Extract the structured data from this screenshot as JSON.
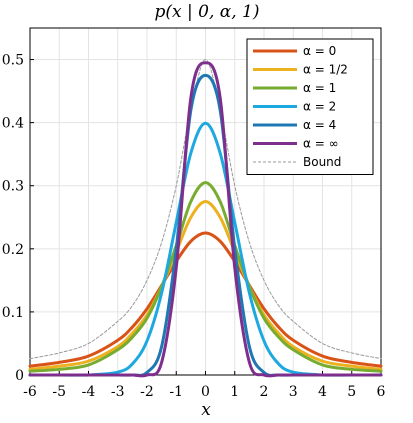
{
  "chart_data": {
    "type": "line",
    "title": "p(x | 0, α, 1)",
    "xlabel": "x",
    "ylabel": "",
    "xlim": [
      -6,
      6
    ],
    "ylim": [
      0,
      0.55
    ],
    "xticks": [
      "-6",
      "-5",
      "-4",
      "-3",
      "-2",
      "-1",
      "0",
      "1",
      "2",
      "3",
      "4",
      "5",
      "6"
    ],
    "yticks": [
      "0",
      "0.1",
      "0.2",
      "0.3",
      "0.4",
      "0.5"
    ],
    "grid": true,
    "legend_position": "top-right",
    "x": [
      -6,
      -5,
      -4,
      -3,
      -2.5,
      -2,
      -1.5,
      -1,
      -0.5,
      0,
      0.5,
      1,
      1.5,
      2,
      2.5,
      3,
      4,
      5,
      6
    ],
    "series": [
      {
        "name": "α = 0",
        "color": "#d95319",
        "values": [
          0.014,
          0.02,
          0.03,
          0.055,
          0.076,
          0.105,
          0.142,
          0.18,
          0.212,
          0.225,
          0.212,
          0.18,
          0.142,
          0.105,
          0.076,
          0.055,
          0.03,
          0.02,
          0.014
        ],
        "dash": false
      },
      {
        "name": "α = 1/2",
        "color": "#edb120",
        "values": [
          0.009,
          0.014,
          0.022,
          0.045,
          0.066,
          0.095,
          0.14,
          0.195,
          0.25,
          0.275,
          0.25,
          0.195,
          0.14,
          0.095,
          0.066,
          0.045,
          0.022,
          0.014,
          0.009
        ],
        "dash": false
      },
      {
        "name": "α = 1",
        "color": "#77ac30",
        "values": [
          0.006,
          0.009,
          0.016,
          0.04,
          0.06,
          0.09,
          0.14,
          0.205,
          0.275,
          0.305,
          0.275,
          0.205,
          0.14,
          0.09,
          0.06,
          0.04,
          0.016,
          0.009,
          0.006
        ],
        "dash": false
      },
      {
        "name": "α = 2",
        "color": "#1ea8e0",
        "values": [
          0.0,
          0.0,
          0.0001,
          0.0044,
          0.0175,
          0.054,
          0.13,
          0.242,
          0.352,
          0.399,
          0.352,
          0.242,
          0.13,
          0.054,
          0.0175,
          0.0044,
          0.0001,
          0.0,
          0.0
        ],
        "dash": false
      },
      {
        "name": "α = 4",
        "color": "#1f77b4",
        "values": [
          0.0,
          0.0,
          0.0,
          0.0,
          0.0,
          0.004,
          0.045,
          0.2,
          0.42,
          0.475,
          0.42,
          0.2,
          0.045,
          0.004,
          0.0,
          0.0,
          0.0,
          0.0,
          0.0
        ],
        "dash": false
      },
      {
        "name": "α = ∞",
        "color": "#7e2f8e",
        "values": [
          0.0,
          0.0,
          0.0,
          0.0,
          0.0,
          0.0,
          0.02,
          0.17,
          0.44,
          0.495,
          0.44,
          0.17,
          0.02,
          0.0,
          0.0,
          0.0,
          0.0,
          0.0,
          0.0
        ],
        "dash": false
      },
      {
        "name": "Bound",
        "color": "#999999",
        "values": [
          0.026,
          0.035,
          0.05,
          0.085,
          0.11,
          0.15,
          0.21,
          0.3,
          0.42,
          0.5,
          0.42,
          0.3,
          0.21,
          0.15,
          0.11,
          0.085,
          0.05,
          0.035,
          0.026
        ],
        "dash": true
      }
    ]
  }
}
